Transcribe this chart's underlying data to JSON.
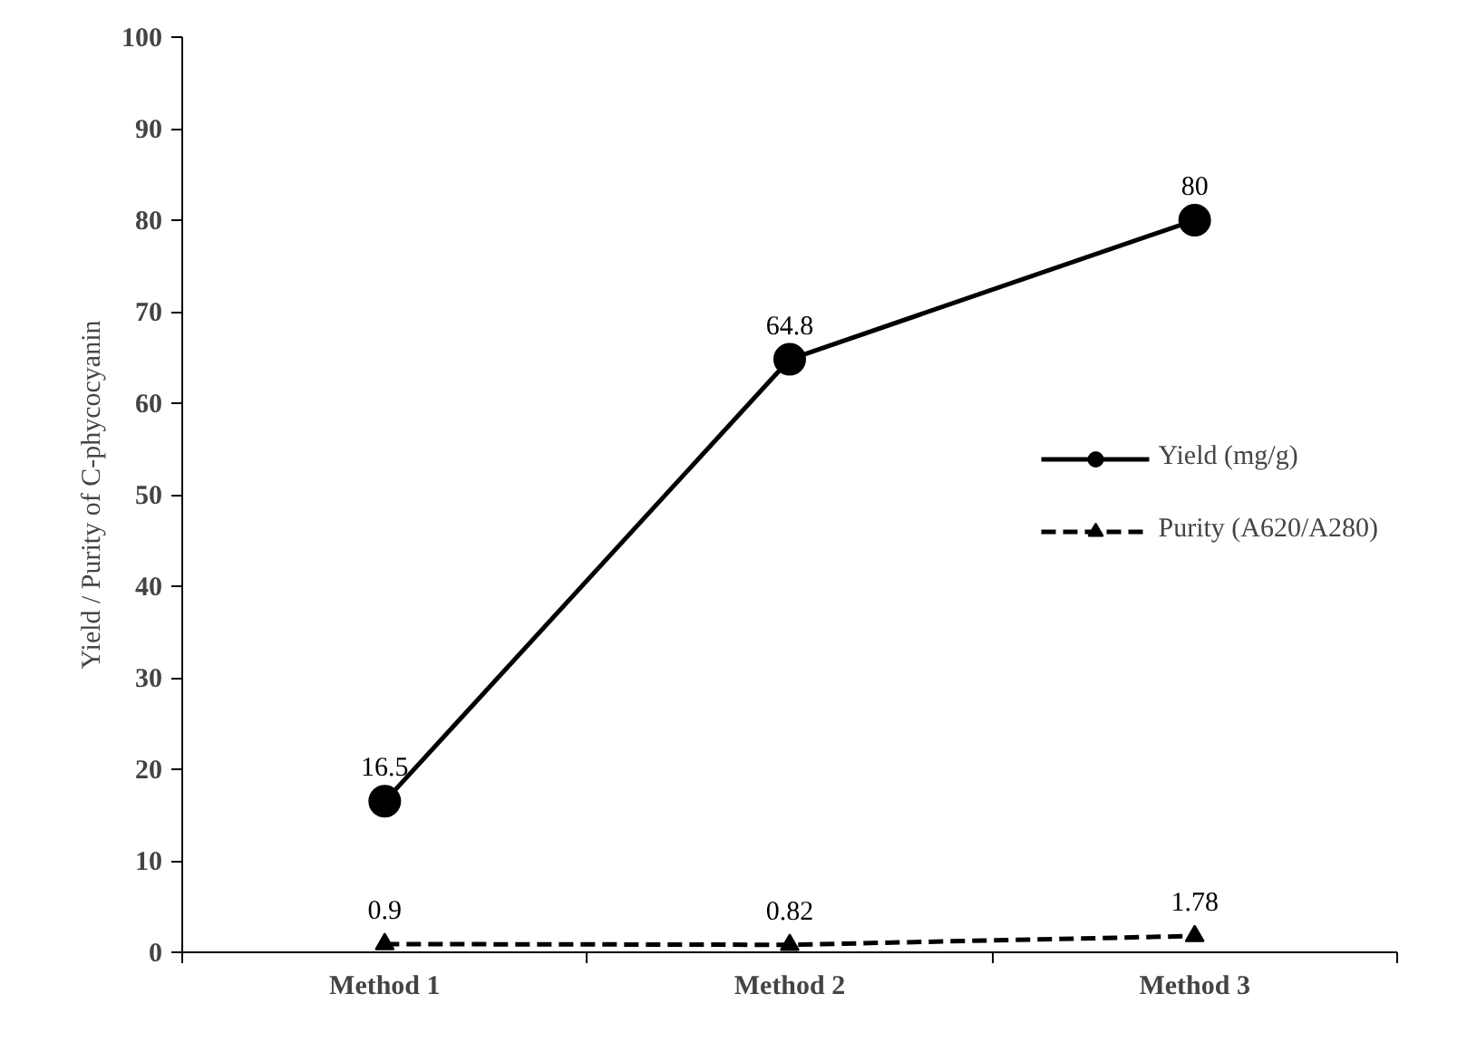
{
  "chart_data": {
    "type": "line",
    "ylabel": "Yield / Purity of C-phycocyanin",
    "categories": [
      "Method 1",
      "Method 2",
      "Method 3"
    ],
    "series": [
      {
        "name": "Yield (mg/g)",
        "color": "#000000",
        "values": [
          16.5,
          64.8,
          80
        ],
        "marker": "circle",
        "line_style": "solid"
      },
      {
        "name": "Purity (A620/A280)",
        "color": "#000000",
        "values": [
          0.9,
          0.82,
          1.78
        ],
        "marker": "triangle",
        "line_style": "dashed"
      }
    ],
    "ylim": [
      0,
      100
    ],
    "yticks": [
      0,
      10,
      20,
      30,
      40,
      50,
      60,
      70,
      80,
      90,
      100
    ],
    "data_labels": true,
    "grid": false,
    "legend": "right"
  }
}
